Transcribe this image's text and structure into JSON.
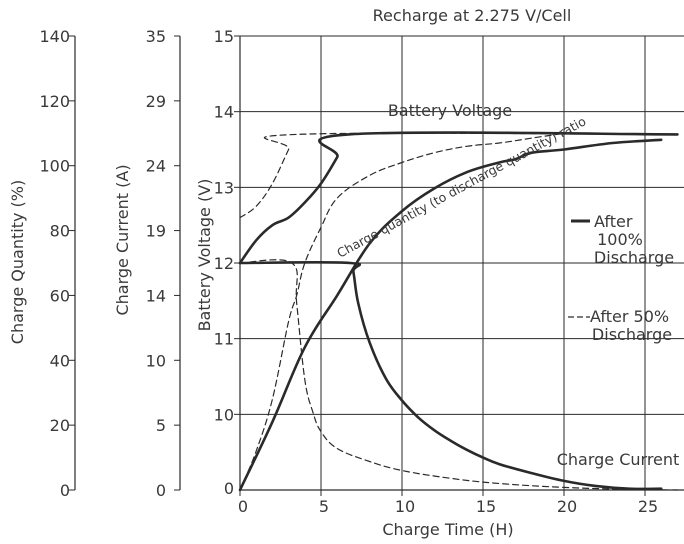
{
  "chart_data": {
    "type": "line",
    "title": "Recharge at 2.275 V/Cell",
    "xlabel": "Charge Time (H)",
    "xlim": [
      0,
      27
    ],
    "xticks": [
      "0",
      "5",
      "10",
      "15",
      "20",
      "25"
    ],
    "axes": {
      "charge_quantity": {
        "label": "Charge Quantity (%)",
        "range": [
          0,
          140
        ],
        "ticks": [
          "0",
          "20",
          "40",
          "60",
          "80",
          "100",
          "120",
          "140"
        ]
      },
      "charge_current": {
        "label": "Charge Current (A)",
        "range": [
          0,
          35
        ],
        "ticks": [
          "0",
          "5",
          "10",
          "14",
          "19",
          "24",
          "29",
          "35"
        ]
      },
      "battery_voltage": {
        "label": "Battery Voltage (V)",
        "range": [
          9,
          15
        ],
        "ticks": [
          "10",
          "11",
          "12",
          "13",
          "14",
          "15"
        ]
      }
    },
    "grid": true,
    "annotations": {
      "battery_voltage": "Battery Voltage",
      "charge_quantity_ratio": "Charge quantity (to discharge quantity) ratio",
      "charge_current": "Charge Current"
    },
    "legend": {
      "solid_label": "After 100% Discharge",
      "solid_lines": [
        "After",
        "100%",
        "Discharge"
      ],
      "dashed_label": "After 50% Discharge",
      "dashed_lines": [
        "After 50%",
        "Discharge"
      ],
      "placement": "right"
    },
    "series": [
      {
        "group": "battery_voltage",
        "style": "solid",
        "legend": "After 100% Discharge",
        "x": [
          0,
          1,
          2,
          3,
          4,
          5,
          6,
          6.7,
          27
        ],
        "y": [
          12.0,
          12.3,
          12.5,
          12.6,
          12.8,
          13.05,
          13.4,
          13.7,
          13.7
        ]
      },
      {
        "group": "battery_voltage",
        "style": "dashed",
        "legend": "After 50% Discharge",
        "x": [
          0,
          1,
          2,
          3,
          3.5,
          27
        ],
        "y": [
          12.6,
          12.75,
          13.05,
          13.5,
          13.7,
          13.7
        ]
      },
      {
        "group": "charge_quantity",
        "style": "solid",
        "legend": "After 100% Discharge",
        "x": [
          0,
          2,
          4,
          6,
          8,
          10,
          12,
          14,
          16,
          17,
          18,
          20,
          23,
          26
        ],
        "y": [
          0,
          21,
          44,
          60,
          76,
          86,
          93,
          98,
          101,
          102,
          104,
          105,
          107,
          108
        ]
      },
      {
        "group": "charge_quantity",
        "style": "dashed",
        "legend": "After 50% Discharge",
        "x": [
          0,
          1,
          2,
          3,
          3.5,
          4,
          5,
          6,
          8,
          10,
          12,
          14,
          16,
          18,
          20
        ],
        "y": [
          0,
          12,
          28,
          52,
          60,
          70,
          81,
          90,
          97,
          101,
          104,
          106,
          107,
          108.5,
          110
        ]
      },
      {
        "group": "charge_current",
        "style": "solid",
        "legend": "After 100% Discharge",
        "x": [
          0,
          6.8,
          7,
          7.3,
          8,
          9,
          10,
          11,
          12,
          13,
          14,
          15,
          16,
          18,
          20,
          22,
          24,
          26
        ],
        "y": [
          16.5,
          16.5,
          15.8,
          13.5,
          11.1,
          8.6,
          6.9,
          5.6,
          4.6,
          3.8,
          3.1,
          2.5,
          2.0,
          1.3,
          0.7,
          0.3,
          0.1,
          0.1
        ]
      },
      {
        "group": "charge_current",
        "style": "dashed",
        "legend": "After 50% Discharge",
        "x": [
          0,
          3.2,
          3.5,
          4,
          4.5,
          5,
          6,
          8,
          10,
          13,
          16,
          20,
          24,
          27
        ],
        "y": [
          16.5,
          16.5,
          13.5,
          8.5,
          6.0,
          4.5,
          3.2,
          2.2,
          1.5,
          0.9,
          0.5,
          0.2,
          0.05,
          0
        ]
      }
    ]
  }
}
